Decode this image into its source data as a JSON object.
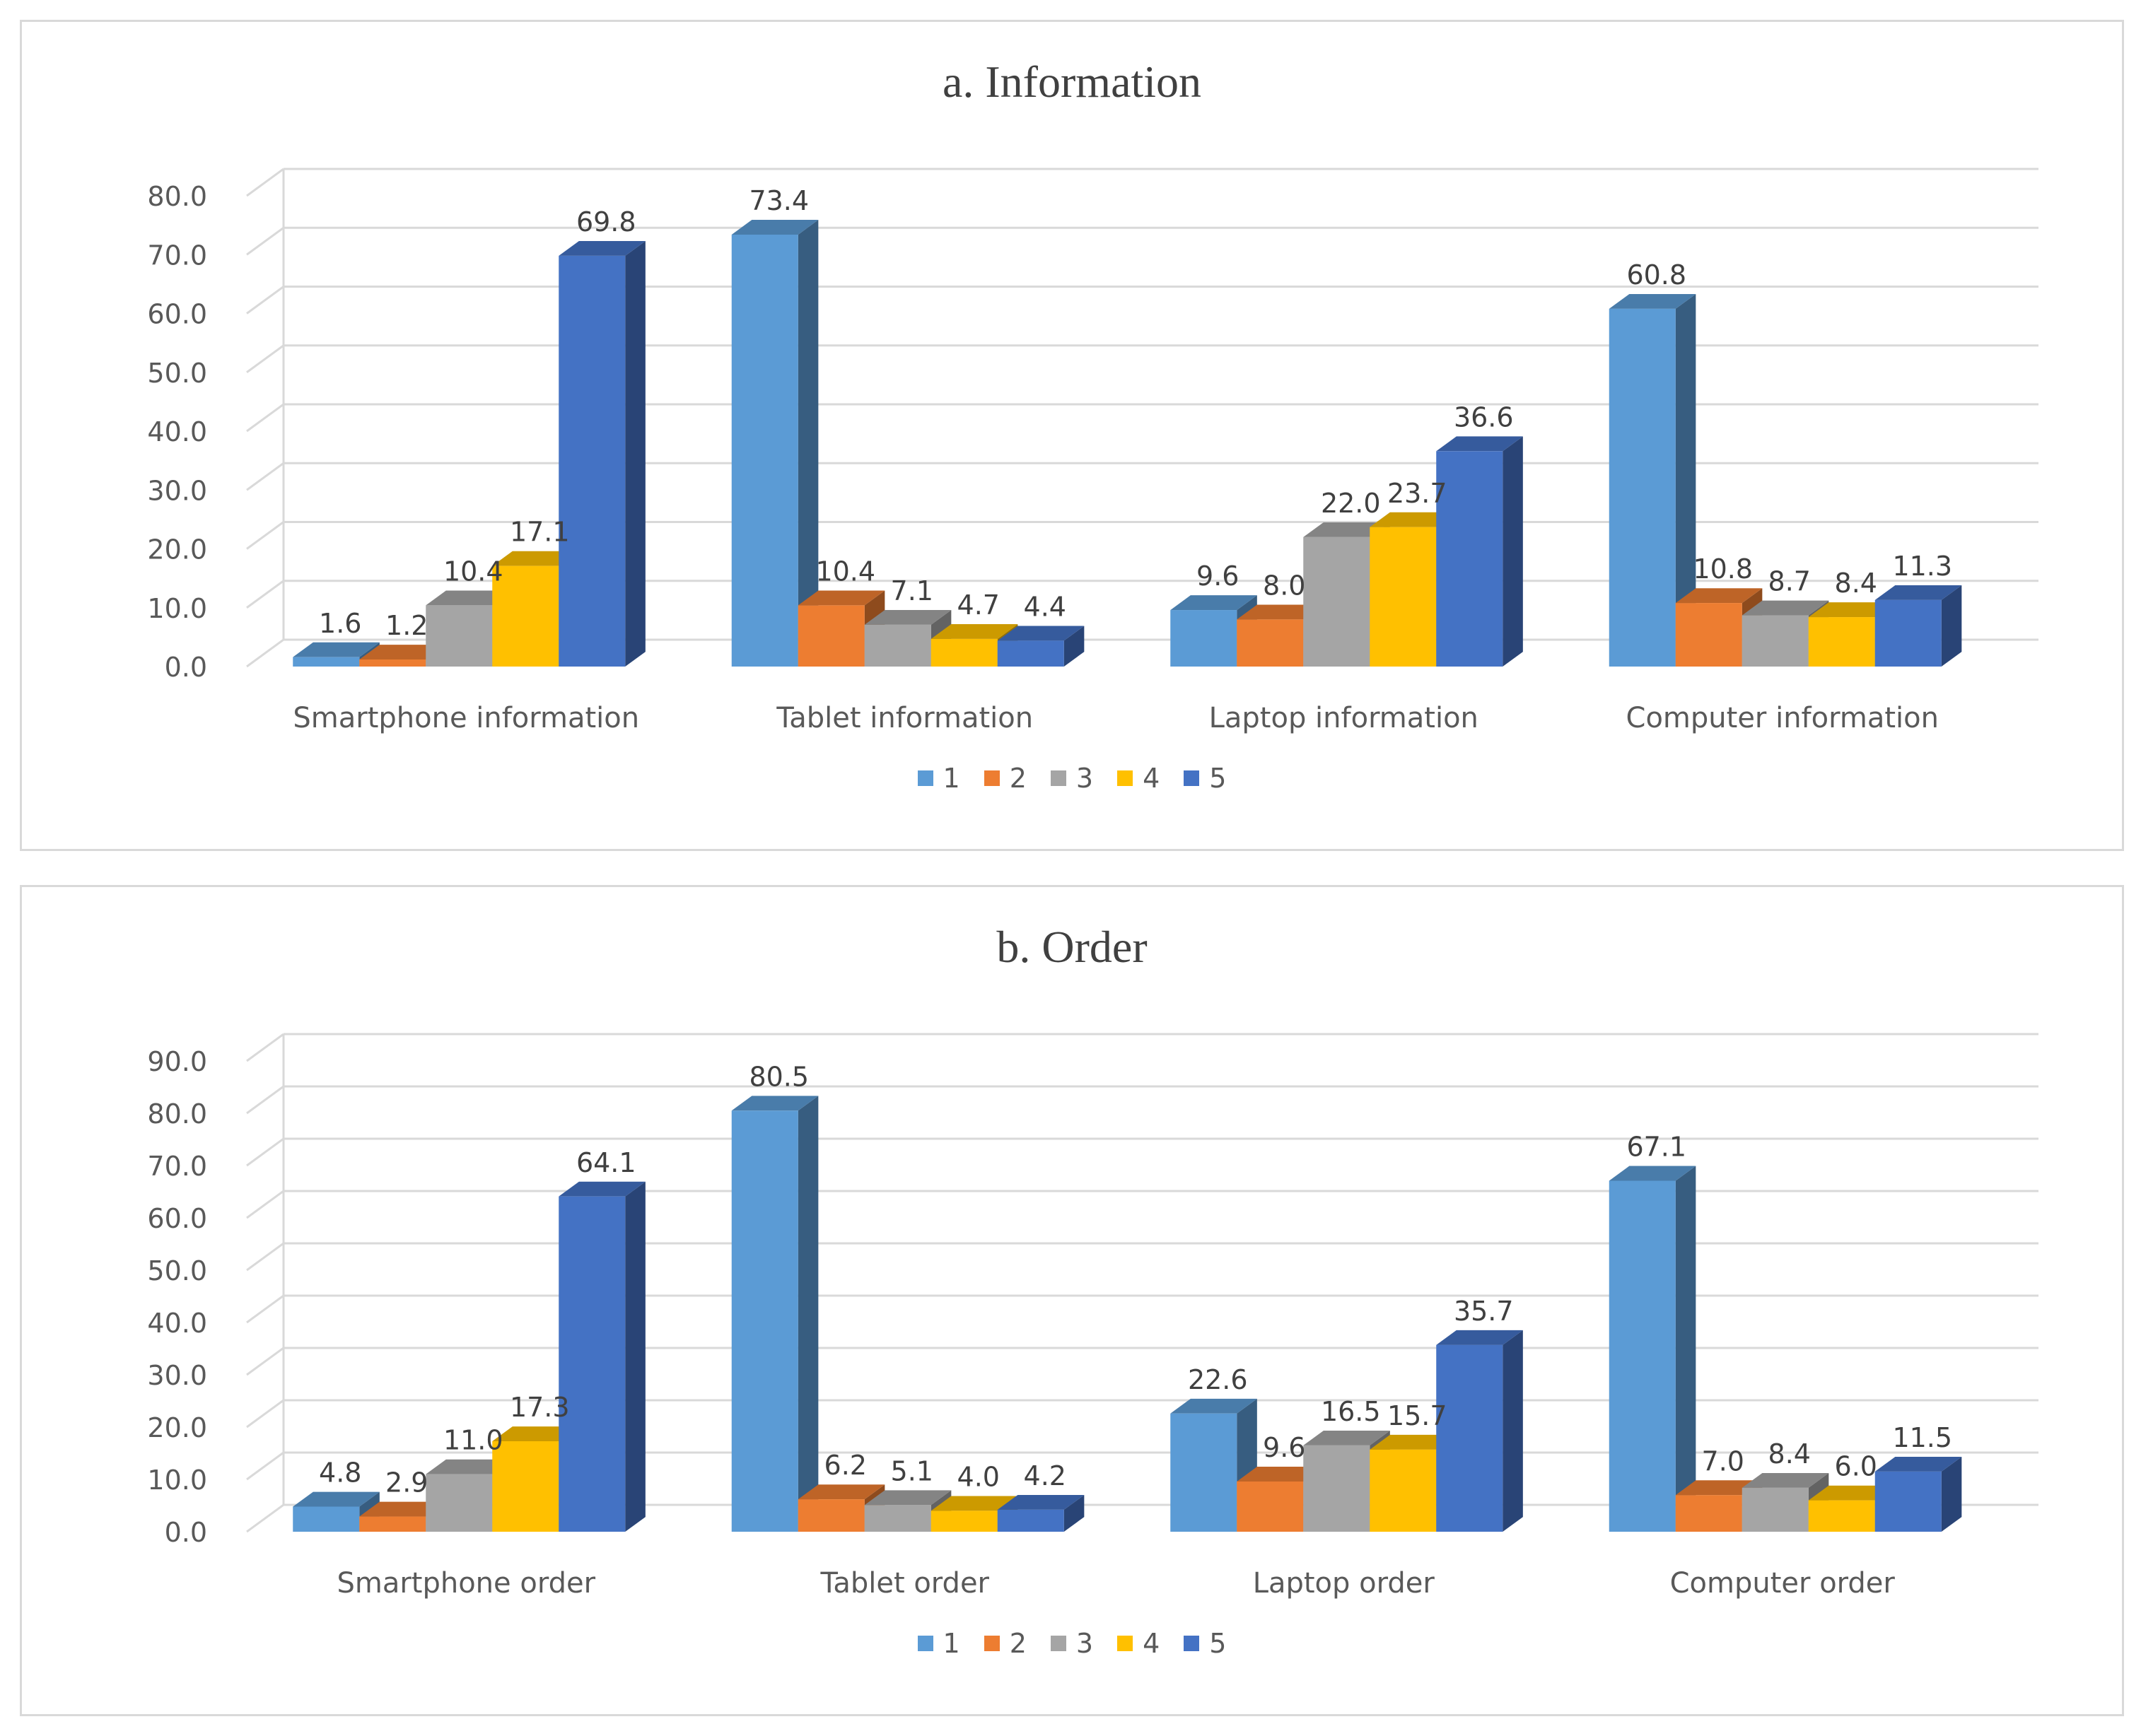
{
  "chart_data": [
    {
      "type": "bar",
      "title": "a. Information",
      "categories": [
        "Smartphone information",
        "Tablet information",
        "Laptop information",
        "Computer information"
      ],
      "ylim": [
        0,
        80
      ],
      "yticks": [
        "0.0",
        "10.0",
        "20.0",
        "30.0",
        "40.0",
        "50.0",
        "60.0",
        "70.0",
        "80.0"
      ],
      "series": [
        {
          "name": "1",
          "values": [
            1.6,
            73.4,
            9.6,
            60.8
          ],
          "labels": [
            "1.6",
            "73.4",
            "9.6",
            "60.8"
          ]
        },
        {
          "name": "2",
          "values": [
            1.2,
            10.4,
            8.0,
            10.8
          ],
          "labels": [
            "1.2",
            "10.4",
            "8.0",
            "10.8"
          ]
        },
        {
          "name": "3",
          "values": [
            10.4,
            7.1,
            22.0,
            8.7
          ],
          "labels": [
            "10.4",
            "7.1",
            "22.0",
            "8.7"
          ]
        },
        {
          "name": "4",
          "values": [
            17.1,
            4.7,
            23.7,
            8.4
          ],
          "labels": [
            "17.1",
            "4.7",
            "23.7",
            "8.4"
          ]
        },
        {
          "name": "5",
          "values": [
            69.8,
            4.4,
            36.6,
            11.3
          ],
          "labels": [
            "69.8",
            "4.4",
            "36.6",
            "11.3"
          ]
        }
      ],
      "legend": "bottom",
      "grid": true
    },
    {
      "type": "bar",
      "title": "b. Order",
      "categories": [
        "Smartphone order",
        "Tablet order",
        "Laptop order",
        "Computer order"
      ],
      "ylim": [
        0,
        90
      ],
      "yticks": [
        "0.0",
        "10.0",
        "20.0",
        "30.0",
        "40.0",
        "50.0",
        "60.0",
        "70.0",
        "80.0",
        "90.0"
      ],
      "series": [
        {
          "name": "1",
          "values": [
            4.8,
            80.5,
            22.6,
            67.1
          ],
          "labels": [
            "4.8",
            "80.5",
            "22.6",
            "67.1"
          ]
        },
        {
          "name": "2",
          "values": [
            2.9,
            6.2,
            9.6,
            7.0
          ],
          "labels": [
            "2.9",
            "6.2",
            "9.6",
            "7.0"
          ]
        },
        {
          "name": "3",
          "values": [
            11.0,
            5.1,
            16.5,
            8.4
          ],
          "labels": [
            "11.0",
            "5.1",
            "16.5",
            "8.4"
          ]
        },
        {
          "name": "4",
          "values": [
            17.3,
            4.0,
            15.7,
            6.0
          ],
          "labels": [
            "17.3",
            "4.0",
            "15.7",
            "6.0"
          ]
        },
        {
          "name": "5",
          "values": [
            64.1,
            4.2,
            35.7,
            11.5
          ],
          "labels": [
            "64.1",
            "4.2",
            "35.7",
            "11.5"
          ]
        }
      ],
      "legend": "bottom",
      "grid": true
    }
  ],
  "series_colors": [
    "#5b9bd5",
    "#ed7d31",
    "#a5a5a5",
    "#ffc000",
    "#4472c4"
  ]
}
